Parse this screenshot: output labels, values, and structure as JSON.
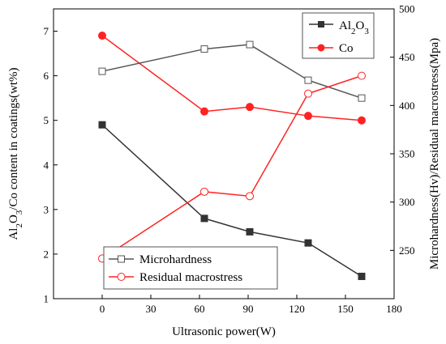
{
  "chart_data": {
    "type": "line",
    "x": [
      0,
      63,
      91,
      127,
      160
    ],
    "xlabel": "Ultrasonic power(W)",
    "xlim": [
      -30,
      180
    ],
    "xticks": [
      0,
      30,
      60,
      90,
      120,
      150,
      180
    ],
    "ylabel_left": "Al2O3/Co content in coatings(wt%)",
    "ylabel_right": "Microhardness(Hv)/Residual macrostress(Mpa)",
    "ylim_left": [
      1,
      7.5
    ],
    "yticks_left": [
      1,
      2,
      3,
      4,
      5,
      6,
      7
    ],
    "ylim_right": [
      200,
      500
    ],
    "yticks_right": [
      250,
      300,
      350,
      400,
      450,
      500
    ],
    "series": [
      {
        "name": "Al2O3",
        "axis": "left",
        "color": "#333333",
        "marker": "square-filled",
        "values": [
          4.9,
          2.8,
          2.5,
          2.25,
          1.5
        ]
      },
      {
        "name": "Co",
        "axis": "left",
        "color": "#ff2222",
        "marker": "circle-filled",
        "values": [
          6.9,
          5.2,
          5.3,
          5.1,
          5.0
        ]
      },
      {
        "name": "Microhardness",
        "axis": "left",
        "color": "#555555",
        "marker": "square-open",
        "values": [
          6.1,
          6.6,
          6.7,
          5.9,
          5.5
        ]
      },
      {
        "name": "Residual macrostress",
        "axis": "left",
        "color": "#ff2222",
        "marker": "circle-open",
        "values": [
          1.9,
          3.4,
          3.3,
          5.6,
          6.0
        ]
      }
    ],
    "legend_top": {
      "placement": "top-right",
      "items": [
        "Al2O3",
        "Co"
      ]
    },
    "legend_bottom": {
      "placement": "bottom-left",
      "items": [
        "Microhardness",
        "Residual macrostress"
      ]
    }
  }
}
